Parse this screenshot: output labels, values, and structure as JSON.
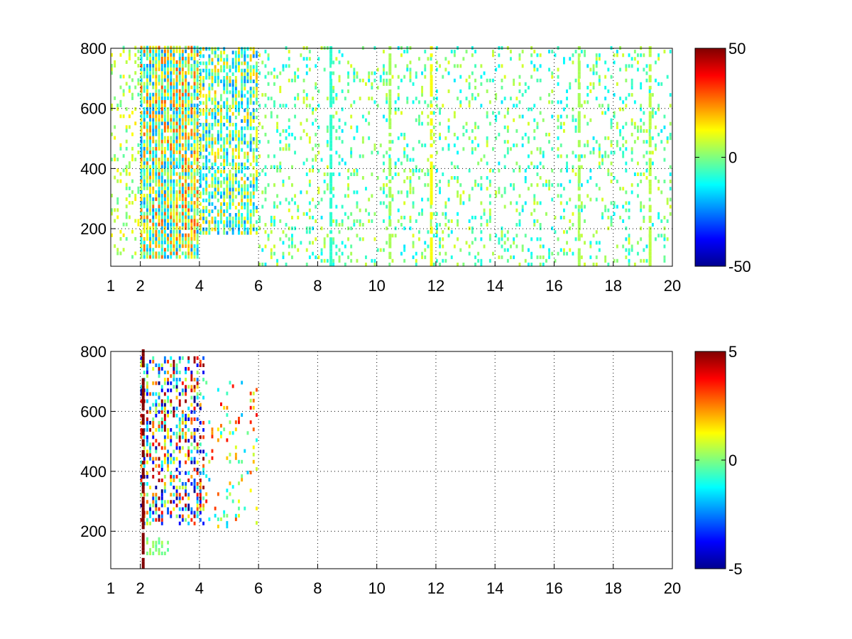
{
  "chart_data": [
    {
      "type": "heatmap",
      "title": "",
      "xlabel": "",
      "ylabel": "",
      "xlim": [
        1,
        20
      ],
      "ylim": [
        75,
        800
      ],
      "x_ticks": [
        "1",
        "2",
        "4",
        "6",
        "8",
        "10",
        "12",
        "14",
        "16",
        "18",
        "20"
      ],
      "x_tick_values": [
        1,
        2,
        4,
        6,
        8,
        10,
        12,
        14,
        16,
        18,
        20
      ],
      "y_ticks": [
        "200",
        "400",
        "600",
        "800"
      ],
      "y_tick_values": [
        200,
        400,
        600,
        800
      ],
      "grid": true,
      "colormap": "jet",
      "colorbar": {
        "ticks": [
          "50",
          "0",
          "-50"
        ],
        "tick_values": [
          50,
          0,
          -50
        ],
        "clim": [
          -50,
          50
        ]
      },
      "description_regions": [
        {
          "x": [
            1.0,
            2.0
          ],
          "y": [
            100,
            800
          ],
          "value_range": [
            -5,
            15
          ],
          "density": 0.25
        },
        {
          "x": [
            2.0,
            4.0
          ],
          "y": [
            100,
            800
          ],
          "value_range": [
            -25,
            30
          ],
          "density": 0.9
        },
        {
          "x": [
            4.0,
            6.0
          ],
          "y": [
            180,
            800
          ],
          "value_range": [
            -25,
            20
          ],
          "density": 0.7
        },
        {
          "x": [
            6.0,
            20.0
          ],
          "y": [
            75,
            800
          ],
          "value_range": [
            -15,
            10
          ],
          "density": 0.18
        }
      ],
      "stripes": [
        {
          "x": 11.8,
          "value": 12
        },
        {
          "x": 16.8,
          "value": 4
        },
        {
          "x": 19.2,
          "value": 6
        },
        {
          "x": 10.4,
          "value": 4
        },
        {
          "x": 8.4,
          "value": -8
        }
      ]
    },
    {
      "type": "heatmap",
      "title": "",
      "xlabel": "",
      "ylabel": "",
      "xlim": [
        1,
        20
      ],
      "ylim": [
        75,
        800
      ],
      "x_ticks": [
        "1",
        "2",
        "4",
        "6",
        "8",
        "10",
        "12",
        "14",
        "16",
        "18",
        "20"
      ],
      "x_tick_values": [
        1,
        2,
        4,
        6,
        8,
        10,
        12,
        14,
        16,
        18,
        20
      ],
      "y_ticks": [
        "200",
        "400",
        "600",
        "800"
      ],
      "y_tick_values": [
        200,
        400,
        600,
        800
      ],
      "grid": true,
      "colormap": "jet",
      "colorbar": {
        "ticks": [
          "5",
          "0",
          "-5"
        ],
        "tick_values": [
          5,
          0,
          -5
        ],
        "clim": [
          -5,
          5
        ]
      },
      "description_regions": [
        {
          "x": [
            2.0,
            4.2
          ],
          "y": [
            220,
            780
          ],
          "value_range": [
            -5,
            5
          ],
          "density": 0.45
        },
        {
          "x": [
            4.2,
            6.0
          ],
          "y": [
            210,
            700
          ],
          "value_range": [
            -2,
            4
          ],
          "density": 0.12
        },
        {
          "x": [
            2.2,
            3.0
          ],
          "y": [
            120,
            180
          ],
          "value_range": [
            -0.5,
            0.5
          ],
          "density": 0.5
        }
      ],
      "stripes": [
        {
          "x": 2.05,
          "value": 5
        }
      ]
    }
  ]
}
